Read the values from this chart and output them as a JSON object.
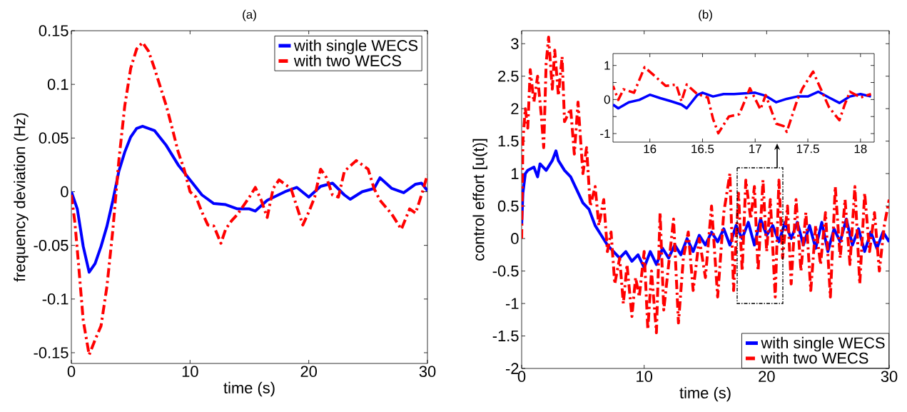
{
  "chart_data": [
    {
      "type": "line",
      "title": "(a)",
      "xlabel": "time (s)",
      "ylabel": "frequency deviation (Hz)",
      "xlim": [
        0,
        30
      ],
      "ylim": [
        -0.16,
        0.15
      ],
      "xticks": [
        0,
        10,
        20,
        30
      ],
      "yticks": [
        -0.15,
        -0.1,
        -0.05,
        0,
        0.05,
        0.1,
        0.15
      ],
      "legend": "top right",
      "series": [
        {
          "name": "with single WECS",
          "color": "#0000ff",
          "line_style": "solid",
          "x": [
            0,
            0.5,
            1,
            1.5,
            2,
            2.5,
            3,
            3.5,
            4,
            4.5,
            5,
            5.5,
            6,
            7,
            8,
            9,
            10,
            11,
            12,
            13,
            14,
            15,
            15.5,
            16.5,
            18,
            19,
            20,
            21,
            22,
            23,
            23.5,
            24.5,
            25.5,
            26,
            27,
            28,
            29,
            29.5,
            30
          ],
          "values": [
            0,
            -0.016,
            -0.051,
            -0.075,
            -0.067,
            -0.051,
            -0.032,
            -0.008,
            0.019,
            0.037,
            0.051,
            0.059,
            0.061,
            0.057,
            0.043,
            0.025,
            0.011,
            -0.003,
            -0.011,
            -0.012,
            -0.016,
            -0.016,
            -0.018,
            -0.008,
            0,
            0.004,
            -0.005,
            0.005,
            0.008,
            -0.003,
            -0.007,
            0,
            0.003,
            0.013,
            0.003,
            -0.001,
            0.007,
            0.008,
            0.001
          ]
        },
        {
          "name": "with two WECS",
          "color": "#ff0000",
          "line_style": "dashdot",
          "x": [
            0,
            0.3,
            0.6,
            1,
            1.5,
            2,
            2.5,
            3,
            3.5,
            4,
            4.5,
            5,
            5.5,
            6,
            6.5,
            7,
            8,
            8.5,
            9,
            9.5,
            10,
            10.5,
            11,
            11.5,
            12,
            12.6,
            13,
            13.5,
            14,
            15,
            15.5,
            16,
            16.5,
            17,
            17.5,
            18.5,
            19.5,
            20,
            20.5,
            21,
            21.5,
            22,
            22.5,
            23,
            24,
            25,
            25.5,
            26,
            27,
            27.8,
            28.5,
            29,
            29.5,
            30
          ],
          "values": [
            -0.003,
            -0.029,
            -0.067,
            -0.12,
            -0.152,
            -0.138,
            -0.125,
            -0.088,
            -0.035,
            0.029,
            0.08,
            0.115,
            0.133,
            0.139,
            0.131,
            0.115,
            0.08,
            0.059,
            0.037,
            0.021,
            0,
            -0.005,
            -0.019,
            -0.031,
            -0.032,
            -0.048,
            -0.035,
            -0.027,
            -0.021,
            -0.005,
            0.004,
            -0.008,
            -0.024,
            0.003,
            0.011,
            0.003,
            -0.031,
            -0.019,
            -0.005,
            0.021,
            0.013,
            -0.003,
            -0.005,
            0.019,
            0.029,
            0.021,
            0.003,
            -0.008,
            -0.021,
            -0.035,
            -0.016,
            -0.02,
            -0.003,
            0.016
          ]
        }
      ]
    },
    {
      "type": "line",
      "title": "(b)",
      "xlabel": "time (s)",
      "ylabel": "control effort [u(t)]",
      "xlim": [
        0,
        30
      ],
      "ylim": [
        -2,
        3.2
      ],
      "xticks": [
        0,
        10,
        20,
        30
      ],
      "yticks": [
        -2,
        -1.5,
        -1,
        -0.5,
        0,
        0.5,
        1,
        1.5,
        2,
        2.5,
        3
      ],
      "legend": "bottom right",
      "series": [
        {
          "name": "with single WECS",
          "color": "#0000ff",
          "line_style": "solid",
          "x": [
            0,
            0.1,
            0.3,
            0.5,
            1,
            1.3,
            1.5,
            2,
            2.5,
            2.8,
            3,
            3.5,
            4,
            4.5,
            5,
            5.5,
            6,
            6.5,
            7,
            7.5,
            8,
            8.5,
            9,
            9.5,
            10,
            10.5,
            11,
            11.5,
            12,
            12.5,
            13,
            13.5,
            14,
            14.5,
            15,
            15.5,
            16,
            16.5,
            17,
            17.5,
            18,
            18.5,
            19,
            19.5,
            20,
            20.5,
            21,
            21.5,
            22,
            22.5,
            23,
            23.5,
            24,
            24.5,
            25,
            25.5,
            26,
            26.5,
            27,
            27.5,
            28,
            28.5,
            29,
            29.5,
            30
          ],
          "values": [
            0.2,
            0.7,
            1.0,
            1.05,
            1.1,
            0.95,
            1.15,
            1.05,
            1.2,
            1.35,
            1.2,
            1.05,
            0.95,
            0.75,
            0.55,
            0.45,
            0.2,
            0.05,
            -0.1,
            -0.2,
            -0.3,
            -0.2,
            -0.35,
            -0.25,
            -0.45,
            -0.2,
            -0.4,
            -0.15,
            -0.3,
            -0.1,
            -0.25,
            0.0,
            -0.2,
            0.05,
            -0.1,
            0.1,
            -0.05,
            0.15,
            -0.1,
            0.2,
            0.0,
            0.25,
            -0.1,
            0.3,
            0.05,
            0.2,
            -0.05,
            0.25,
            0.0,
            0.25,
            -0.1,
            0.2,
            -0.15,
            0.25,
            -0.2,
            0.15,
            -0.05,
            0.3,
            -0.1,
            0.15,
            -0.2,
            0.1,
            -0.15,
            0.1,
            -0.05
          ]
        },
        {
          "name": "with two WECS",
          "color": "#ff0000",
          "line_style": "dashdot",
          "x": [
            0,
            0.1,
            0.3,
            0.5,
            0.7,
            1,
            1.3,
            1.6,
            1.8,
            2,
            2.2,
            2.5,
            2.7,
            3,
            3.3,
            3.5,
            4,
            4.3,
            4.6,
            5,
            5.3,
            5.6,
            6,
            6.3,
            6.7,
            7,
            7.3,
            7.6,
            8,
            8.3,
            8.6,
            9,
            9.3,
            9.6,
            10,
            10.3,
            10.6,
            11,
            11.3,
            11.6,
            12,
            12.4,
            12.8,
            13.2,
            13.6,
            14,
            14.5,
            15,
            15.5,
            16,
            16.5,
            17,
            17.3,
            17.7,
            18,
            18.3,
            18.7,
            19,
            19.3,
            19.7,
            20,
            20.3,
            20.7,
            21,
            21.3,
            21.7,
            22,
            22.4,
            22.8,
            23.2,
            23.6,
            24,
            24.4,
            24.8,
            25.2,
            25.6,
            26,
            26.4,
            26.8,
            27.2,
            27.6,
            28,
            28.4,
            28.8,
            29.2,
            29.6,
            30
          ],
          "values": [
            0.0,
            1.5,
            2.0,
            1.7,
            2.6,
            2.1,
            2.5,
            1.9,
            1.4,
            2.7,
            3.1,
            2.3,
            2.9,
            2.2,
            2.8,
            1.8,
            2.0,
            1.3,
            2.1,
            1.0,
            1.4,
            0.5,
            0.8,
            0.2,
            0.6,
            -0.2,
            0.1,
            -0.7,
            -0.3,
            -1.0,
            -0.4,
            -1.2,
            -0.6,
            -0.9,
            -0.2,
            -1.4,
            -0.5,
            -1.45,
            0.4,
            -1.1,
            -0.4,
            0.3,
            -1.3,
            -0.3,
            0.1,
            -0.8,
            0.0,
            -0.6,
            0.5,
            -0.9,
            0.4,
            1.0,
            -0.8,
            0.7,
            -0.5,
            0.9,
            0.3,
            0.8,
            -0.5,
            0.9,
            -0.2,
            0.6,
            -0.9,
            0.9,
            -0.3,
            0.5,
            -0.7,
            0.6,
            -0.5,
            0.4,
            -0.8,
            0.2,
            -0.4,
            0.4,
            -0.9,
            0.8,
            -0.3,
            0.6,
            -0.4,
            0.8,
            -0.7,
            0.7,
            -0.2,
            0.4,
            -0.5,
            0.2,
            0.6
          ]
        }
      ]
    },
    {
      "type": "line",
      "xlim": [
        15.65,
        18.13
      ],
      "ylim": [
        -1.25,
        1.35
      ],
      "xticks": [
        16,
        16.5,
        17,
        17.5,
        18
      ],
      "yticks": [
        -1,
        {
          "value": -0.5,
          "label": null
        },
        0,
        {
          "value": 0.5,
          "label": null
        },
        1
      ],
      "series": [
        {
          "color": "#0000ff",
          "line_style": "solid",
          "x": [
            15.65,
            15.7,
            15.8,
            15.9,
            16,
            16.1,
            16.2,
            16.3,
            16.35,
            16.45,
            16.5,
            16.6,
            16.7,
            16.8,
            17,
            17.1,
            17.2,
            17.3,
            17.4,
            17.5,
            17.6,
            17.7,
            17.8,
            17.9,
            18,
            18.1
          ],
          "values": [
            -0.15,
            -0.26,
            -0.08,
            -0.01,
            0.14,
            0.04,
            -0.05,
            -0.15,
            -0.26,
            0.13,
            0.2,
            0.09,
            0.16,
            0.16,
            0.2,
            0.11,
            -0.08,
            0.02,
            0.09,
            0.09,
            0.23,
            0.06,
            -0.1,
            0.09,
            0.16,
            0.09
          ]
        },
        {
          "color": "#ff0000",
          "line_style": "dashdot",
          "x": [
            15.65,
            15.7,
            15.75,
            15.85,
            15.95,
            16.05,
            16.15,
            16.25,
            16.3,
            16.35,
            16.45,
            16.55,
            16.6,
            16.65,
            16.75,
            16.85,
            16.95,
            17.05,
            17.1,
            17.2,
            17.27,
            17.3,
            17.4,
            17.45,
            17.55,
            17.6,
            17.7,
            17.8,
            17.85,
            17.9,
            18,
            18.1
          ],
          "values": [
            0.4,
            -0.01,
            0.3,
            0.2,
            0.95,
            0.68,
            0.4,
            0.44,
            -0.05,
            0.44,
            0.16,
            0.06,
            -0.57,
            -0.99,
            -0.5,
            -0.43,
            0.33,
            -0.29,
            0.13,
            -0.71,
            -0.78,
            -0.95,
            -0.01,
            0.33,
            0.82,
            0.47,
            -0.22,
            -0.61,
            -0.15,
            0.23,
            0.06,
            0.16
          ]
        }
      ]
    }
  ]
}
